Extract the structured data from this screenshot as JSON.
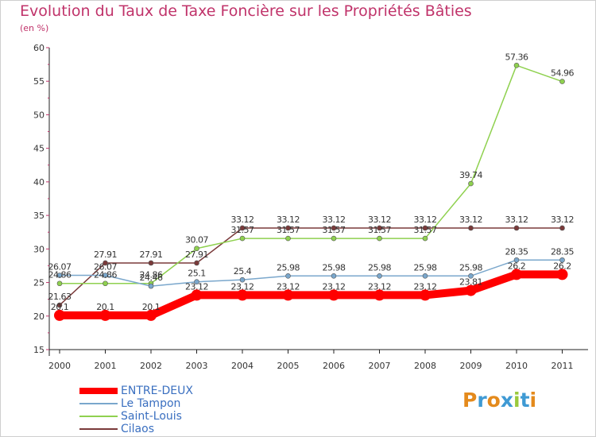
{
  "title": "Evolution du Taux de Taxe Foncière sur les Propriétés Bâties",
  "subtitle": "(en %)",
  "logo": {
    "text": "Proxiti",
    "letters": [
      "P",
      "r",
      "o",
      "x",
      "i",
      "t",
      "i"
    ],
    "colors": [
      "#e48a1c",
      "#3f9ad4",
      "#e48a1c",
      "#3f9ad4",
      "#9ac93c",
      "#3f9ad4",
      "#e48a1c"
    ]
  },
  "chart_data": {
    "type": "line",
    "title": "Evolution du Taux de Taxe Foncière sur les Propriétés Bâties",
    "ylabel": "(en %)",
    "xlabel": "",
    "ylim": [
      15,
      60
    ],
    "yticks": [
      "15",
      "20",
      "25",
      "30",
      "35",
      "40",
      "45",
      "50",
      "55",
      "60"
    ],
    "categories": [
      "2000",
      "2001",
      "2002",
      "2003",
      "2004",
      "2005",
      "2006",
      "2007",
      "2008",
      "2009",
      "2010",
      "2011"
    ],
    "series": [
      {
        "name": "ENTRE-DEUX",
        "color": "#ff0000",
        "values": [
          20.1,
          20.1,
          20.1,
          23.12,
          23.12,
          23.12,
          23.12,
          23.12,
          23.12,
          23.81,
          26.2,
          26.2
        ],
        "labels": [
          "20.1",
          "20.1",
          "20.1",
          "23.12",
          "23.12",
          "23.12",
          "23.12",
          "23.12",
          "23.12",
          "23.81",
          "26.2",
          "26.2"
        ]
      },
      {
        "name": "Le Tampon",
        "color": "#7aa7cc",
        "values": [
          26.07,
          26.07,
          24.46,
          25.1,
          25.4,
          25.98,
          25.98,
          25.98,
          25.98,
          25.98,
          28.35,
          28.35
        ],
        "labels": [
          "26.07",
          "26.07",
          "24.46",
          "25.1",
          "25.4",
          "25.98",
          "25.98",
          "25.98",
          "25.98",
          "25.98",
          "28.35",
          "28.35"
        ]
      },
      {
        "name": "Saint-Louis",
        "color": "#8fd14f",
        "values": [
          24.86,
          24.86,
          24.86,
          30.07,
          31.57,
          31.57,
          31.57,
          31.57,
          31.57,
          39.74,
          57.36,
          54.96
        ],
        "labels": [
          "24.86",
          "24.86",
          "24.86",
          "30.07",
          "31.57",
          "31.57",
          "31.57",
          "31.57",
          "31.57",
          "39.74",
          "57.36",
          "54.96"
        ]
      },
      {
        "name": "Cilaos",
        "color": "#7a3a3a",
        "values": [
          21.63,
          27.91,
          27.91,
          27.91,
          33.12,
          33.12,
          33.12,
          33.12,
          33.12,
          33.12,
          33.12,
          33.12
        ],
        "labels": [
          "21.63",
          "27.91",
          "27.91",
          "27.91",
          "33.12",
          "33.12",
          "33.12",
          "33.12",
          "33.12",
          "33.12",
          "33.12",
          "33.12"
        ]
      }
    ],
    "legend": [
      "ENTRE-DEUX",
      "Le Tampon",
      "Saint-Louis",
      "Cilaos"
    ],
    "legend_position": "bottom-left",
    "grid": false
  }
}
